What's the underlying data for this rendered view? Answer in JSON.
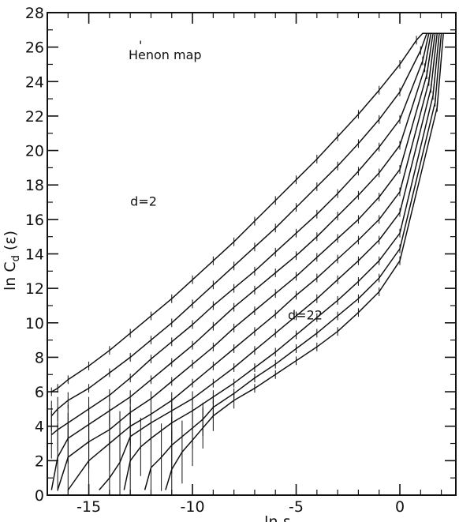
{
  "chart_data": {
    "type": "line",
    "title": "Henon map",
    "xlabel": "ln ε",
    "ylabel": "ln Cₐ (ε)",
    "ylabel_parts": {
      "main": "ln C",
      "sub": "d",
      "tail": " (ε)"
    },
    "xlim": [
      -17,
      2.7
    ],
    "ylim": [
      0,
      28
    ],
    "xticks": [
      -15,
      -10,
      -5,
      0
    ],
    "xtick_labels": [
      "-15",
      "-10",
      "-5",
      "0"
    ],
    "yticks": [
      0,
      2,
      4,
      6,
      8,
      10,
      12,
      14,
      16,
      18,
      20,
      22,
      24,
      26,
      28
    ],
    "ytick_labels": [
      "0",
      "2",
      "4",
      "6",
      "8",
      "10",
      "12",
      "14",
      "16",
      "18",
      "20",
      "22",
      "24",
      "26",
      "28"
    ],
    "grid": false,
    "annotations": [
      {
        "text": "d=2",
        "x": -13.0,
        "y": 16.8
      },
      {
        "text": "d=22",
        "x": -5.4,
        "y": 10.2
      }
    ],
    "series": [
      {
        "x": [
          -16.8,
          -16.5,
          -16,
          -15,
          -14,
          -13,
          -12,
          -11,
          -10,
          -9,
          -8,
          -7,
          -6,
          -5,
          -4,
          -3,
          -2,
          -1,
          0,
          0.8,
          1.1,
          2.7
        ],
        "y": [
          6.0,
          6.2,
          6.7,
          7.5,
          8.4,
          9.4,
          10.4,
          11.4,
          12.5,
          13.6,
          14.7,
          15.9,
          17.1,
          18.3,
          19.5,
          20.8,
          22.1,
          23.5,
          25.0,
          26.4,
          26.8,
          26.8
        ]
      },
      {
        "x": [
          -16.8,
          -16.5,
          -16,
          -15,
          -14,
          -13,
          -12,
          -11,
          -10,
          -9,
          -8,
          -7,
          -6,
          -5,
          -4,
          -3,
          -2,
          -1,
          0,
          1.0,
          1.3,
          2.7
        ],
        "y": [
          4.6,
          5.0,
          5.5,
          6.2,
          7.1,
          8.0,
          9.0,
          10.0,
          11.1,
          12.2,
          13.3,
          14.4,
          15.5,
          16.7,
          17.9,
          19.1,
          20.4,
          21.8,
          23.4,
          25.8,
          26.8,
          26.8
        ]
      },
      {
        "x": [
          -16.8,
          -16.5,
          -16,
          -15,
          -14,
          -13,
          -12,
          -11,
          -10,
          -9,
          -8,
          -7,
          -6,
          -5,
          -4,
          -3,
          -2,
          -1,
          0,
          1.1,
          1.4,
          2.7
        ],
        "y": [
          3.5,
          3.8,
          4.2,
          5.0,
          5.8,
          6.8,
          7.9,
          8.9,
          9.9,
          11.0,
          12.0,
          13.0,
          14.1,
          15.2,
          16.3,
          17.5,
          18.8,
          20.2,
          21.8,
          25.2,
          26.8,
          26.8
        ]
      },
      {
        "x": [
          -16.8,
          -16.5,
          -16,
          -15,
          -14,
          -13,
          -12,
          -11,
          -10,
          -9,
          -8,
          -7,
          -6,
          -5,
          -4,
          -3,
          -2,
          -1,
          0,
          1.2,
          1.5,
          2.7
        ],
        "y": [
          0.3,
          2.2,
          3.3,
          4.1,
          4.9,
          5.7,
          6.7,
          7.7,
          8.7,
          9.8,
          10.9,
          11.9,
          12.9,
          13.9,
          15.0,
          16.2,
          17.4,
          18.7,
          20.3,
          24.8,
          26.8,
          26.8
        ]
      },
      {
        "x": [
          -16.5,
          -16,
          -15,
          -14,
          -13,
          -12,
          -11,
          -10,
          -9,
          -8,
          -7,
          -6,
          -5,
          -4,
          -3,
          -2,
          -1,
          0,
          1.3,
          1.6,
          2.7
        ],
        "y": [
          0.3,
          2.2,
          3.1,
          3.8,
          4.8,
          5.6,
          6.6,
          7.6,
          8.6,
          9.7,
          10.7,
          11.7,
          12.7,
          13.8,
          14.9,
          16.0,
          17.3,
          18.9,
          24.4,
          26.8,
          26.8
        ]
      },
      {
        "x": [
          -16,
          -15,
          -14,
          -13.5,
          -13,
          -12,
          -11,
          -10,
          -9,
          -8,
          -7,
          -6,
          -5,
          -4,
          -3,
          -2,
          -1,
          0,
          1.4,
          1.7,
          2.7
        ],
        "y": [
          0.3,
          2.0,
          3.0,
          3.5,
          4.0,
          4.7,
          5.5,
          6.5,
          7.5,
          8.5,
          9.5,
          10.5,
          11.6,
          12.6,
          13.7,
          14.8,
          16.0,
          17.6,
          24.0,
          26.8,
          26.8
        ]
      },
      {
        "x": [
          -14.5,
          -14,
          -13.5,
          -13,
          -12,
          -11,
          -10,
          -9,
          -8,
          -7,
          -6,
          -5,
          -4,
          -3,
          -2,
          -1,
          0,
          1.5,
          1.8,
          2.7
        ],
        "y": [
          0.3,
          1.0,
          1.9,
          3.4,
          4.2,
          4.9,
          5.6,
          6.5,
          7.4,
          8.4,
          9.4,
          10.4,
          11.4,
          12.5,
          13.6,
          14.8,
          16.4,
          23.6,
          26.8,
          26.8
        ]
      },
      {
        "x": [
          -13.3,
          -13,
          -12.5,
          -12,
          -11,
          -10,
          -9,
          -8,
          -7,
          -6,
          -5,
          -4,
          -3,
          -2,
          -1,
          0,
          1.6,
          1.9,
          2.7
        ],
        "y": [
          0.3,
          2.0,
          2.8,
          3.3,
          4.2,
          4.9,
          5.7,
          6.5,
          7.4,
          8.3,
          9.3,
          10.3,
          11.3,
          12.4,
          13.6,
          15.2,
          23.2,
          26.8,
          26.8
        ]
      },
      {
        "x": [
          -12.3,
          -12,
          -11.5,
          -11,
          -10,
          -9.5,
          -9,
          -8,
          -7,
          -6,
          -5,
          -4,
          -3,
          -2,
          -1,
          0,
          1.7,
          2.0,
          2.7
        ],
        "y": [
          0.3,
          1.6,
          2.2,
          2.9,
          3.9,
          4.4,
          5.1,
          5.9,
          6.8,
          7.6,
          8.5,
          9.4,
          10.4,
          11.4,
          12.6,
          14.3,
          22.8,
          26.8,
          26.8
        ]
      },
      {
        "x": [
          -11.3,
          -11,
          -10.5,
          -10,
          -9.5,
          -9,
          -8,
          -7,
          -6,
          -5,
          -4,
          -3,
          -2,
          -1,
          0,
          1.8,
          2.1,
          2.7
        ],
        "y": [
          0.3,
          1.5,
          2.5,
          3.2,
          3.9,
          4.6,
          5.5,
          6.2,
          7.0,
          7.8,
          8.6,
          9.5,
          10.6,
          11.8,
          13.6,
          22.5,
          26.8,
          26.8
        ]
      }
    ]
  }
}
